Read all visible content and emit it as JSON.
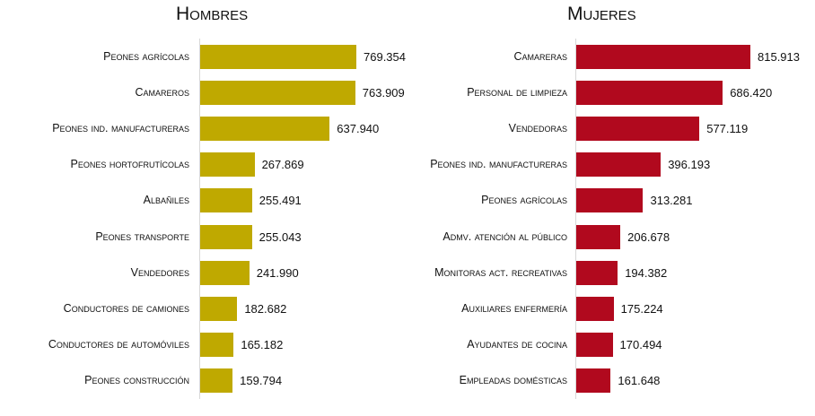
{
  "chart_data": [
    {
      "type": "bar",
      "orientation": "horizontal",
      "title": "Hombres",
      "color": "#bfa900",
      "categories": [
        "Peones agrícolas",
        "Camareros",
        "Peones ind. manufactureras",
        "Peones hortofrutícolas",
        "Albañiles",
        "Peones transporte",
        "Vendedores",
        "Conductores de camiones",
        "Conductores de automóviles",
        "Peones construcción"
      ],
      "values": [
        769354,
        763909,
        637940,
        267869,
        255491,
        255043,
        241990,
        182682,
        165182,
        159794
      ],
      "value_labels": [
        "769.354",
        "763.909",
        "637.940",
        "267.869",
        "255.491",
        "255.043",
        "241.990",
        "182.682",
        "165.182",
        "159.794"
      ]
    },
    {
      "type": "bar",
      "orientation": "horizontal",
      "title": "Mujeres",
      "color": "#b1091e",
      "categories": [
        "Camareras",
        "Personal de limpieza",
        "Vendedoras",
        "Peones ind. manufactureras",
        "Peones agrícolas",
        "Admv. atención al público",
        "Monitoras act. recreativas",
        "Auxiliares enfermería",
        "Ayudantes de cocina",
        "Empleadas domésticas"
      ],
      "values": [
        815913,
        686420,
        577119,
        396193,
        313281,
        206678,
        194382,
        175224,
        170494,
        161648
      ],
      "value_labels": [
        "815.913",
        "686.420",
        "577.119",
        "396.193",
        "313.281",
        "206.678",
        "194.382",
        "175.224",
        "170.494",
        "161.648"
      ]
    }
  ]
}
